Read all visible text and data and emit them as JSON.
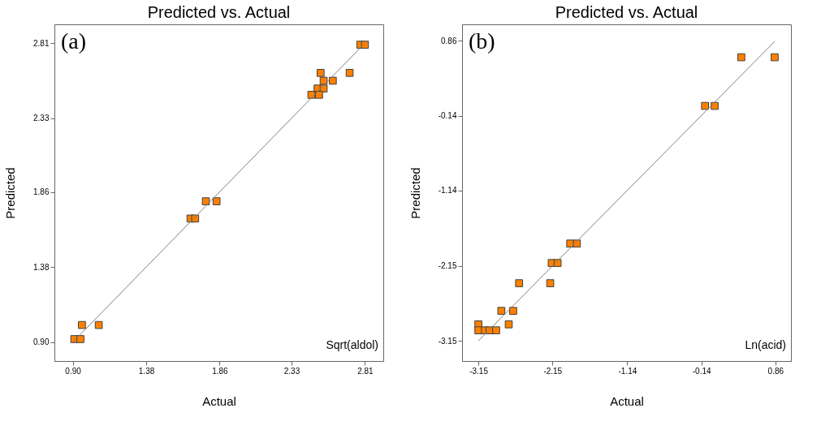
{
  "chart_data": [
    {
      "type": "scatter",
      "title": "Predicted vs. Actual",
      "xlabel": "Actual",
      "ylabel": "Predicted",
      "xlim": [
        0.78,
        2.93
      ],
      "ylim": [
        0.78,
        2.93
      ],
      "xticks": [
        {
          "value": 0.9,
          "label": "0.90"
        },
        1.38,
        1.86,
        2.33,
        2.81
      ],
      "yticks": [
        {
          "value": 0.9,
          "label": "0.90"
        },
        1.38,
        1.86,
        2.33,
        2.81
      ],
      "grid": false,
      "legend": false,
      "marker": "square",
      "annotations": [
        "(a)",
        "Sqrt(aldol)"
      ],
      "series": [
        {
          "color": "#ff8000",
          "x": [
            2.78,
            2.81,
            2.52,
            2.71,
            2.54,
            2.6,
            2.5,
            2.54,
            2.46,
            2.51,
            1.77,
            1.84,
            1.67,
            1.7,
            0.96,
            1.07,
            0.91,
            0.95
          ],
          "values": [
            2.8,
            2.8,
            2.62,
            2.62,
            2.57,
            2.57,
            2.52,
            2.52,
            2.48,
            2.48,
            1.8,
            1.8,
            1.69,
            1.69,
            1.01,
            1.01,
            0.92,
            0.92
          ]
        },
        {
          "type": "line",
          "marker": "none",
          "color": "#808080",
          "x": [
            0.9,
            2.82
          ],
          "values": [
            0.9,
            2.82
          ]
        }
      ]
    },
    {
      "type": "scatter",
      "title": "Predicted vs. Actual",
      "xlabel": "Actual",
      "ylabel": "Predicted",
      "xlim": [
        -3.37,
        1.07
      ],
      "ylim": [
        -3.42,
        1.08
      ],
      "xticks": [
        -3.15,
        -2.15,
        -1.14,
        -0.14,
        0.86
      ],
      "yticks": [
        -3.15,
        -2.15,
        -1.14,
        -0.14,
        0.86
      ],
      "grid": false,
      "legend": false,
      "marker": "square",
      "annotations": [
        "(b)",
        "Ln(acid)"
      ],
      "series": [
        {
          "color": "#ff8000",
          "x": [
            0.4,
            0.85,
            -0.09,
            0.04,
            -1.91,
            -1.82,
            -2.16,
            -2.08,
            -2.6,
            -2.18,
            -2.84,
            -2.68,
            -2.74,
            -3.15,
            -3.15,
            -3.06,
            -3.0,
            -2.91
          ],
          "values": [
            0.64,
            0.64,
            -0.01,
            -0.01,
            -1.85,
            -1.85,
            -2.11,
            -2.11,
            -2.38,
            -2.38,
            -2.75,
            -2.75,
            -2.93,
            -2.93,
            -3.01,
            -3.01,
            -3.01,
            -3.01
          ]
        },
        {
          "type": "line",
          "marker": "none",
          "color": "#808080",
          "x": [
            -3.15,
            0.85
          ],
          "values": [
            -3.15,
            0.85
          ]
        }
      ]
    }
  ]
}
